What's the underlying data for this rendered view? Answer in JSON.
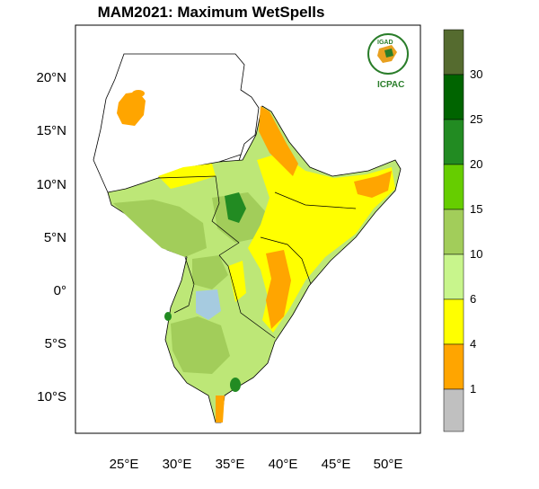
{
  "title": "MAM2021: Maximum WetSpells",
  "logo": {
    "top_text": "IGAD",
    "bottom_text": "ICPAC"
  },
  "latitude_labels": [
    "20°N",
    "15°N",
    "10°N",
    "5°N",
    "0°",
    "5°S",
    "10°S"
  ],
  "longitude_labels": [
    "25°E",
    "30°E",
    "35°E",
    "40°E",
    "45°E",
    "50°E"
  ],
  "colorbar": {
    "labels": [
      "30",
      "25",
      "20",
      "15",
      "10",
      "6",
      "4",
      "1"
    ],
    "colors": [
      "#556b2f",
      "#006400",
      "#228b22",
      "#66cd00",
      "#a2cd5a",
      "#c8f58c",
      "#ffff00",
      "#ffa500",
      "#c0c0c0"
    ]
  },
  "palette": {
    "land_light": "#bde777",
    "land_mid": "#a2cd5a",
    "orange": "#ffa500",
    "yellow": "#ffff00",
    "dark_green": "#228b22",
    "water": "#a6cbe0"
  }
}
